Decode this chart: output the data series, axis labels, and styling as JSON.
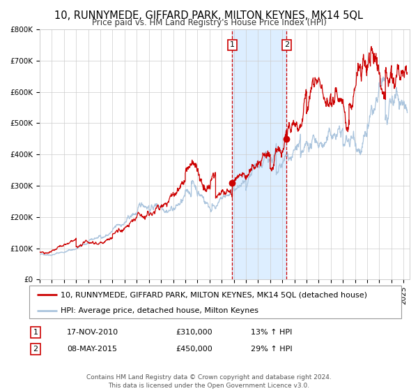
{
  "title": "10, RUNNYMEDE, GIFFARD PARK, MILTON KEYNES, MK14 5QL",
  "subtitle": "Price paid vs. HM Land Registry's House Price Index (HPI)",
  "ylim": [
    0,
    800000
  ],
  "yticks": [
    0,
    100000,
    200000,
    300000,
    400000,
    500000,
    600000,
    700000,
    800000
  ],
  "ytick_labels": [
    "£0",
    "£100K",
    "£200K",
    "£300K",
    "£400K",
    "£500K",
    "£600K",
    "£700K",
    "£800K"
  ],
  "xlim_start": 1995.0,
  "xlim_end": 2025.5,
  "background_color": "#ffffff",
  "plot_bg_color": "#ffffff",
  "grid_color": "#cccccc",
  "hpi_color": "#aac4dd",
  "price_color": "#cc0000",
  "sale1_date": 2010.878,
  "sale1_price": 310000,
  "sale2_date": 2015.356,
  "sale2_price": 450000,
  "shade_color": "#ddeeff",
  "vline_color": "#cc0000",
  "legend_price_label": "10, RUNNYMEDE, GIFFARD PARK, MILTON KEYNES, MK14 5QL (detached house)",
  "legend_hpi_label": "HPI: Average price, detached house, Milton Keynes",
  "table_row1": [
    "1",
    "17-NOV-2010",
    "£310,000",
    "13% ↑ HPI"
  ],
  "table_row2": [
    "2",
    "08-MAY-2015",
    "£450,000",
    "29% ↑ HPI"
  ],
  "footer1": "Contains HM Land Registry data © Crown copyright and database right 2024.",
  "footer2": "This data is licensed under the Open Government Licence v3.0.",
  "title_fontsize": 10.5,
  "subtitle_fontsize": 8.5,
  "tick_fontsize": 7.5,
  "legend_fontsize": 8,
  "table_fontsize": 8,
  "footer_fontsize": 6.5
}
